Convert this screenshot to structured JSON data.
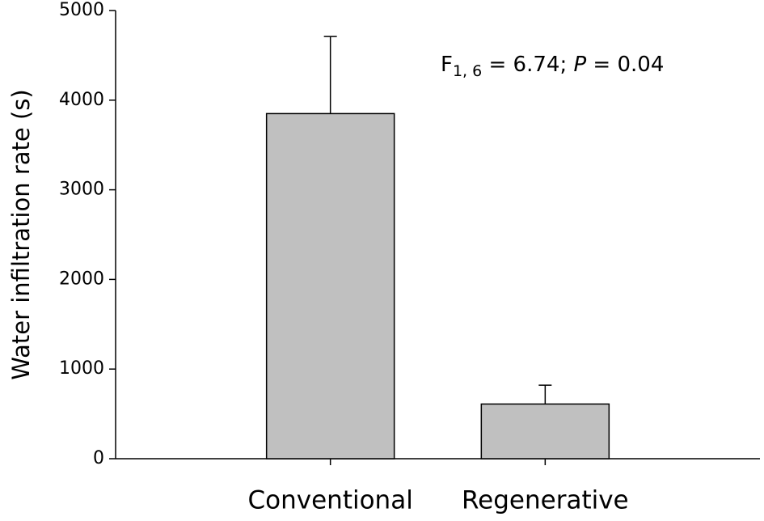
{
  "chart_data": {
    "type": "bar",
    "y_label": "Water infiltration rate (s)",
    "categories": [
      "Conventional",
      "Regenerative"
    ],
    "values": [
      3850,
      610
    ],
    "errors": [
      860,
      210
    ],
    "color": "#c0c0c0",
    "ylim": [
      0,
      5000
    ],
    "yticks": [
      0,
      1000,
      2000,
      3000,
      4000,
      5000
    ],
    "annotation": {
      "F": "F",
      "subscript": "1, 6",
      "equals": " = 6.74; ",
      "P": "P",
      "result": " = 0.04"
    }
  }
}
